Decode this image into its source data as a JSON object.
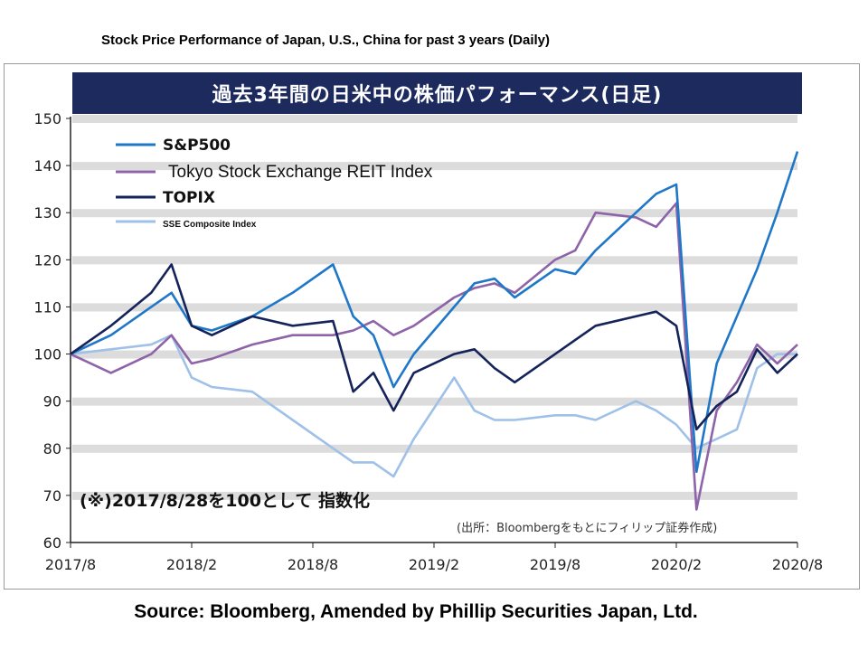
{
  "page_title": "Stock Price Performance of Japan, U.S., China for past 3 years (Daily)",
  "chart_title": "過去3年間の日米中の株価パフォーマンス(日足)",
  "source_text": "Source: Bloomberg, Amended by Phillip Securities Japan, Ltd.",
  "note_text": "(※)2017/8/28を100として 指数化",
  "source_note": "(出所：Bloombergをもとにフィリップ証券作成)",
  "chart_data": {
    "type": "line",
    "title": "過去3年間の日米中の株価パフォーマンス(日足)",
    "xlabel": "",
    "ylabel": "",
    "ylim": [
      60,
      150
    ],
    "yticks": [
      60,
      70,
      80,
      90,
      100,
      110,
      120,
      130,
      140,
      150
    ],
    "xlim": [
      "2017-08",
      "2020-08"
    ],
    "xticks": [
      "2017/8",
      "2018/2",
      "2018/8",
      "2019/2",
      "2019/8",
      "2020/2",
      "2020/8"
    ],
    "grid": "horizontal bands",
    "legend_position": "top-left",
    "x": [
      "2017-08",
      "2017-10",
      "2017-12",
      "2018-01",
      "2018-02",
      "2018-03",
      "2018-05",
      "2018-07",
      "2018-09",
      "2018-10",
      "2018-11",
      "2018-12",
      "2019-01",
      "2019-03",
      "2019-04",
      "2019-05",
      "2019-06",
      "2019-08",
      "2019-09",
      "2019-10",
      "2019-12",
      "2020-01",
      "2020-02",
      "2020-03",
      "2020-04",
      "2020-05",
      "2020-06",
      "2020-07",
      "2020-08"
    ],
    "series": [
      {
        "name": "S&P500",
        "color": "#1f77c8",
        "values": [
          100,
          104,
          110,
          113,
          106,
          105,
          108,
          113,
          119,
          108,
          104,
          93,
          100,
          110,
          115,
          116,
          112,
          118,
          117,
          122,
          130,
          134,
          136,
          75,
          98,
          108,
          118,
          130,
          143
        ]
      },
      {
        "name": "Tokyo Stock Exchange REIT Index",
        "color": "#8e63a8",
        "values": [
          100,
          96,
          100,
          104,
          98,
          99,
          102,
          104,
          104,
          105,
          107,
          104,
          106,
          112,
          114,
          115,
          113,
          120,
          122,
          130,
          129,
          127,
          132,
          67,
          88,
          94,
          102,
          98,
          102
        ]
      },
      {
        "name": "TOPIX",
        "color": "#14235a",
        "values": [
          100,
          106,
          113,
          119,
          106,
          104,
          108,
          106,
          107,
          92,
          96,
          88,
          96,
          100,
          101,
          97,
          94,
          100,
          103,
          106,
          108,
          109,
          106,
          84,
          89,
          92,
          101,
          96,
          100
        ]
      },
      {
        "name": "SSE Composite Index",
        "color": "#9fc1e8",
        "values": [
          100,
          101,
          102,
          104,
          95,
          93,
          92,
          86,
          80,
          77,
          77,
          74,
          82,
          95,
          88,
          86,
          86,
          87,
          87,
          86,
          90,
          88,
          85,
          80,
          82,
          84,
          97,
          100,
          100
        ]
      }
    ]
  }
}
